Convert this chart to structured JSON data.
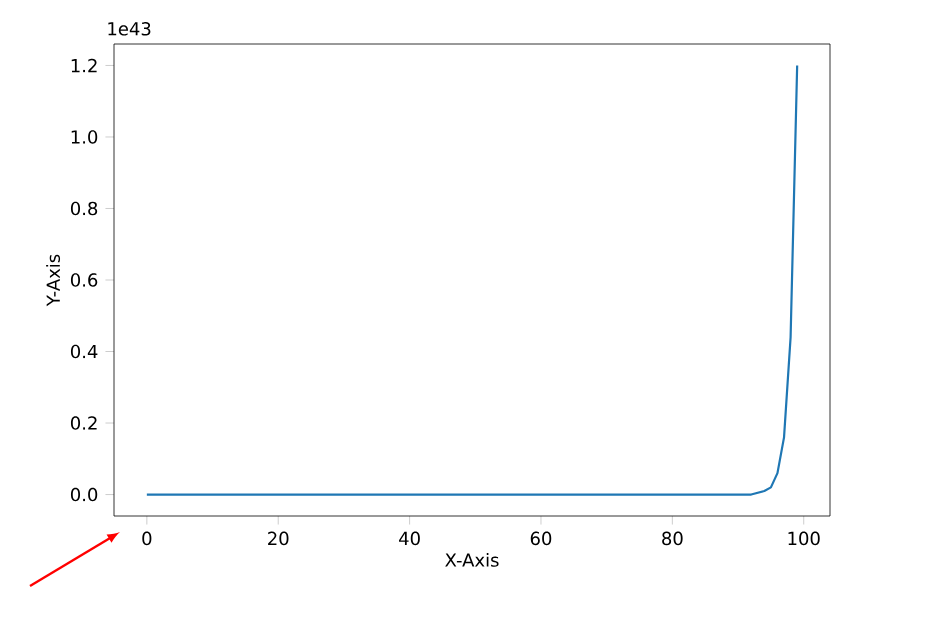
{
  "chart_data": {
    "type": "line",
    "xlabel": "X-Axis",
    "ylabel": "Y-Axis",
    "annotations": [
      "1e43"
    ],
    "series": [
      {
        "color": "#1f77b4",
        "x": [
          0,
          10,
          20,
          30,
          40,
          50,
          60,
          70,
          80,
          90,
          92,
          94,
          95,
          96,
          97,
          98,
          99
        ],
        "values": [
          0,
          0,
          0,
          0,
          0,
          0,
          0,
          0,
          0,
          0,
          0.0,
          0.01,
          0.02,
          0.06,
          0.16,
          0.44,
          1.2
        ]
      }
    ],
    "xlim": [
      -5,
      104
    ],
    "ylim": [
      -0.06,
      1.26
    ],
    "xticks": [
      0,
      20,
      40,
      60,
      80,
      100
    ],
    "yticks": [
      {
        "value": 0,
        "label": "0.0"
      },
      {
        "value": 0.2,
        "label": "0.2"
      },
      {
        "value": 0.4,
        "label": "0.4"
      },
      {
        "value": 0.6,
        "label": "0.6"
      },
      {
        "value": 0.8,
        "label": "0.8"
      },
      {
        "value": 1.0,
        "label": "1.0"
      },
      {
        "value": 1.2,
        "label": "1.2"
      }
    ],
    "grid": false,
    "marker": "none",
    "line_style": "solid"
  }
}
